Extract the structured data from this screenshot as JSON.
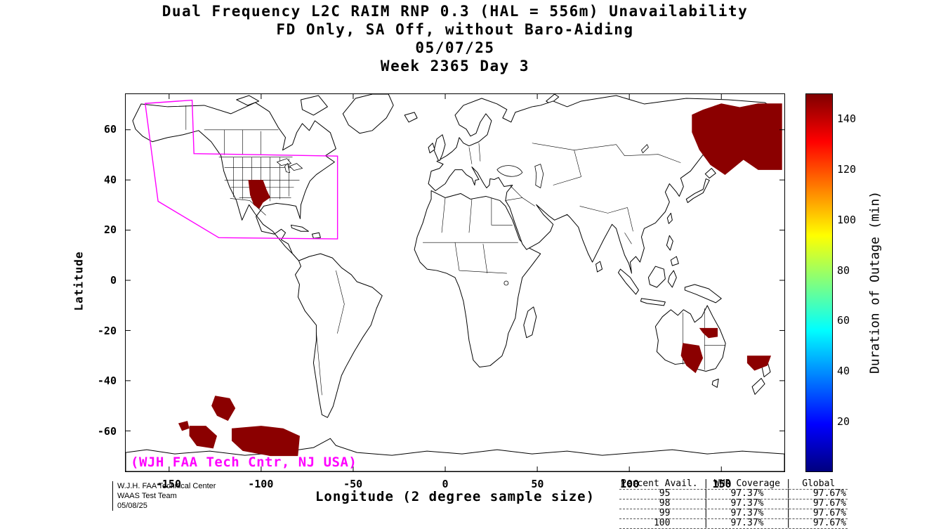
{
  "title": {
    "line1": "Dual Frequency L2C RAIM RNP 0.3 (HAL = 556m) Unavailability",
    "line2": "FD Only, SA Off, without Baro-Aiding",
    "line3": "05/07/25",
    "line4": "Week 2365 Day 3"
  },
  "chart_data": {
    "type": "heatmap",
    "title": "Dual Frequency L2C RAIM RNP 0.3 (HAL = 556m) Unavailability",
    "subtitle": "FD Only, SA Off, without Baro-Aiding",
    "date": "05/07/25",
    "week_day": "Week 2365 Day 3",
    "x_axis": {
      "label": "Longitude (2 degree sample size)",
      "ticks": [
        -150,
        -100,
        -50,
        0,
        50,
        100,
        150
      ],
      "range": [
        -174,
        184
      ]
    },
    "y_axis": {
      "label": "Latitude",
      "ticks": [
        60,
        40,
        20,
        0,
        -20,
        -40,
        -60
      ],
      "range": [
        -76,
        74
      ]
    },
    "colorbar": {
      "label": "Duration of Outage (min)",
      "ticks": [
        20,
        40,
        60,
        80,
        100,
        120,
        140
      ],
      "range": [
        0,
        150
      ],
      "colormap": "jet",
      "legend_position": "right"
    },
    "grid": false,
    "outage_color": "#8b0000",
    "outage_regions": [
      {
        "name": "northeast-asia",
        "points": [
          [
            134,
            59
          ],
          [
            134,
            66
          ],
          [
            140,
            68
          ],
          [
            150,
            70.5
          ],
          [
            160,
            69
          ],
          [
            170,
            70.5
          ],
          [
            183,
            70.5
          ],
          [
            183,
            44
          ],
          [
            170,
            44
          ],
          [
            162,
            48
          ],
          [
            152,
            42
          ],
          [
            144,
            46
          ],
          [
            138,
            52
          ]
        ]
      },
      {
        "name": "south-central-us",
        "points": [
          [
            -107,
            40
          ],
          [
            -99,
            40
          ],
          [
            -97,
            36
          ],
          [
            -95,
            33
          ],
          [
            -99,
            31
          ],
          [
            -101,
            28.5
          ],
          [
            -104,
            30
          ],
          [
            -106,
            34
          ]
        ]
      },
      {
        "name": "queensland",
        "points": [
          [
            138,
            -19
          ],
          [
            148,
            -19
          ],
          [
            148,
            -22.5
          ],
          [
            143,
            -23
          ],
          [
            140,
            -21
          ]
        ]
      },
      {
        "name": "south-australia",
        "points": [
          [
            129,
            -25
          ],
          [
            138,
            -26
          ],
          [
            140,
            -31
          ],
          [
            136,
            -37
          ],
          [
            131,
            -34
          ],
          [
            128,
            -30
          ]
        ]
      },
      {
        "name": "tasman-sea",
        "points": [
          [
            164,
            -30
          ],
          [
            177,
            -30
          ],
          [
            175,
            -34
          ],
          [
            168,
            -36
          ],
          [
            164,
            -33
          ]
        ]
      },
      {
        "name": "south-pacific-1",
        "points": [
          [
            -125,
            -46
          ],
          [
            -117,
            -47
          ],
          [
            -114,
            -51
          ],
          [
            -118,
            -56
          ],
          [
            -124,
            -54
          ],
          [
            -127,
            -50
          ]
        ]
      },
      {
        "name": "south-pacific-2",
        "points": [
          [
            -145,
            -57
          ],
          [
            -140,
            -56
          ],
          [
            -139,
            -59
          ],
          [
            -143,
            -60
          ]
        ]
      },
      {
        "name": "south-pacific-3",
        "points": [
          [
            -139,
            -58
          ],
          [
            -130,
            -58
          ],
          [
            -124,
            -62
          ],
          [
            -126,
            -67
          ],
          [
            -135,
            -66
          ],
          [
            -139,
            -62
          ]
        ]
      },
      {
        "name": "south-pacific-4",
        "points": [
          [
            -116,
            -59
          ],
          [
            -100,
            -58
          ],
          [
            -88,
            -59
          ],
          [
            -79,
            -62
          ],
          [
            -80,
            -70
          ],
          [
            -95,
            -70
          ],
          [
            -110,
            -68
          ],
          [
            -116,
            -64
          ]
        ]
      }
    ],
    "waas_boundary": {
      "color": "#ff00ff",
      "points": [
        [
          -163,
          70.5
        ],
        [
          -137.5,
          71.8
        ],
        [
          -136.5,
          50.5
        ],
        [
          -58.5,
          49.5
        ],
        [
          -58.5,
          16.5
        ],
        [
          -123,
          17
        ],
        [
          -156,
          31.5
        ]
      ]
    },
    "map_label": {
      "text": "(WJH FAA Tech Cntr, NJ USA)",
      "color": "#ff00ff"
    }
  },
  "annotations": {
    "credit_lines": [
      "W.J.H. FAA Technical Center",
      "WAAS Test Team",
      "05/08/25"
    ]
  },
  "stats_table": {
    "headers": [
      "Percent Avail.",
      "WNR Coverage",
      "Global"
    ],
    "rows": [
      [
        "95",
        "97.37%",
        "97.67%"
      ],
      [
        "98",
        "97.37%",
        "97.67%"
      ],
      [
        "99",
        "97.37%",
        "97.67%"
      ],
      [
        "100",
        "97.37%",
        "97.67%"
      ]
    ]
  }
}
